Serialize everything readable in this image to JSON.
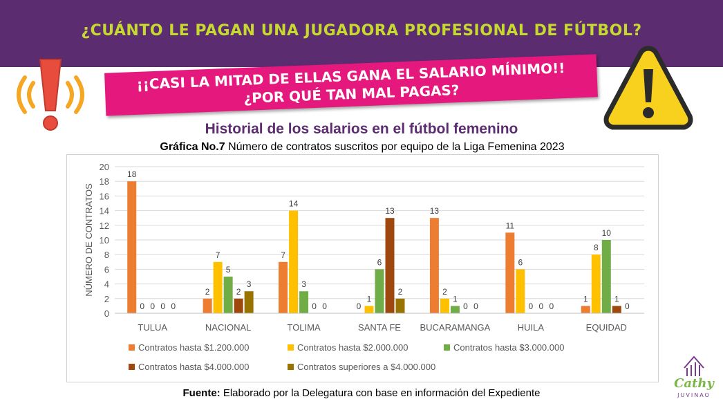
{
  "banner": {
    "title": "¿CUÁNTO LE PAGAN UNA JUGADORA PROFESIONAL DE FÚTBOL?"
  },
  "alert": {
    "line1": "¡¡CASI LA MITAD DE ELLAS GANA EL SALARIO MÍNIMO!!",
    "line2": "¿POR QUÉ TAN MAL PAGAS?"
  },
  "subtitle": "Historial de los salarios en el fútbol femenino",
  "figure": {
    "label": "Gráfica No.7",
    "caption": "Número de contratos suscritos por equipo de la Liga Femenina 2023"
  },
  "source": {
    "label": "Fuente:",
    "text": "Elaborado por la Delegatura con base en información del Expediente"
  },
  "logo": {
    "name": "Cathy",
    "surname": "JUVINAO"
  },
  "icons": {
    "left": "alarm-exclamation-icon",
    "right": "warning-triangle-icon"
  },
  "colors": {
    "banner": "#5b2c6f",
    "title": "#c6d92f",
    "alert": "#e5187d"
  },
  "chart_data": {
    "type": "bar",
    "title": "",
    "xlabel": "",
    "ylabel": "NÚMERO DE CONTRATOS",
    "ylim": [
      0,
      20
    ],
    "yticks": [
      0,
      2,
      4,
      6,
      8,
      10,
      12,
      14,
      16,
      18,
      20
    ],
    "grid": true,
    "legend": "bottom",
    "categories": [
      "TULUA",
      "NACIONAL",
      "TOLIMA",
      "SANTA FE",
      "BUCARAMANGA",
      "HUILA",
      "EQUIDAD"
    ],
    "series": [
      {
        "name": "Contratos hasta $1.200.000",
        "color": "#ed7d31",
        "values": [
          18,
          2,
          7,
          0,
          13,
          11,
          1
        ]
      },
      {
        "name": "Contratos hasta $2.000.000",
        "color": "#ffc000",
        "values": [
          0,
          7,
          14,
          1,
          2,
          6,
          8
        ]
      },
      {
        "name": "Contratos hasta $3.000.000",
        "color": "#70ad47",
        "values": [
          0,
          5,
          3,
          6,
          1,
          0,
          10
        ]
      },
      {
        "name": "Contratos hasta $4.000.000",
        "color": "#9e480e",
        "values": [
          0,
          2,
          0,
          13,
          0,
          0,
          1
        ]
      },
      {
        "name": "Contratos superiores a $4.000.000",
        "color": "#997300",
        "values": [
          0,
          3,
          0,
          2,
          0,
          0,
          0
        ]
      }
    ],
    "data_labels": [
      [
        "18",
        "0",
        "0",
        "0",
        "0"
      ],
      [
        "2",
        "7",
        "5",
        "2",
        "3"
      ],
      [
        "7",
        "14",
        "3",
        "0",
        "0"
      ],
      [
        "0",
        "1",
        "6",
        "13",
        "2"
      ],
      [
        "13",
        "2",
        "1",
        "0",
        "0"
      ],
      [
        "11",
        "6",
        "0",
        "0",
        "0"
      ],
      [
        "1",
        "8",
        "10",
        "1",
        "0"
      ]
    ]
  }
}
